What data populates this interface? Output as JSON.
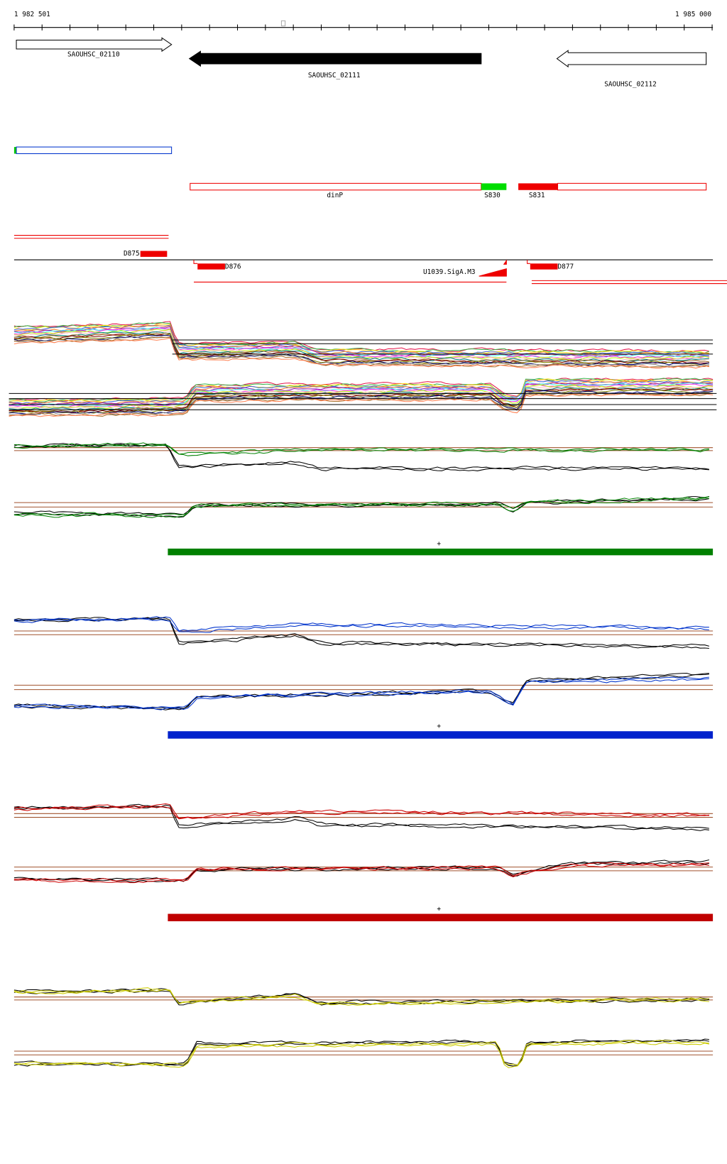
{
  "ruler": {
    "start": "1 982 501",
    "end": "1 985 000"
  },
  "genes": [
    "SAOUHSC_02110",
    "SAOUHSC_02111",
    "SAOUHSC_02112"
  ],
  "features": [
    "dinP",
    "S830",
    "S831"
  ],
  "segments": [
    "D875",
    "D876",
    "D877"
  ],
  "promoter": "U1039.SigA.M3",
  "strands": [
    "+",
    "+",
    "+"
  ]
}
